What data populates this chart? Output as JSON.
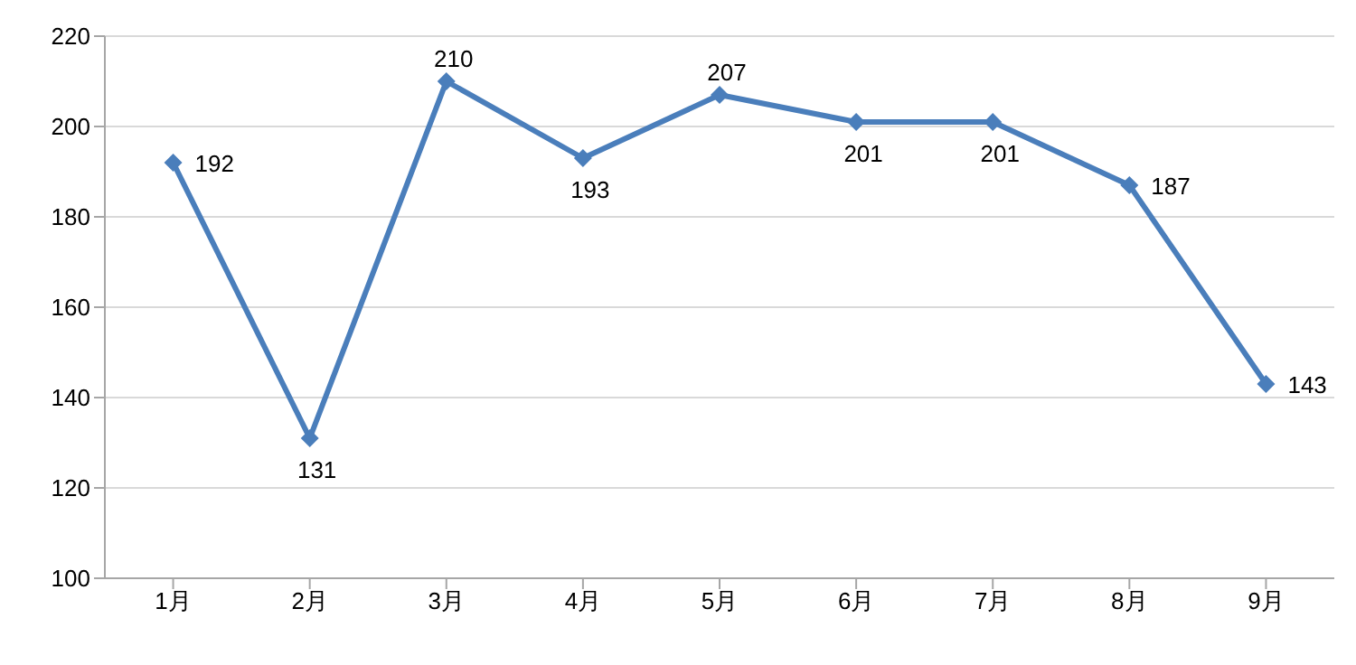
{
  "chart_data": {
    "type": "line",
    "categories": [
      "1月",
      "2月",
      "3月",
      "4月",
      "5月",
      "6月",
      "7月",
      "8月",
      "9月"
    ],
    "series": [
      {
        "color": "#4a7ebb",
        "values": [
          192,
          131,
          210,
          193,
          207,
          201,
          201,
          187,
          143
        ]
      }
    ],
    "ylim": [
      100,
      220
    ],
    "yticks": [
      100,
      120,
      140,
      160,
      180,
      200,
      220
    ],
    "grid": "y",
    "marker": "diamond",
    "data_labels": true,
    "legend": false
  }
}
